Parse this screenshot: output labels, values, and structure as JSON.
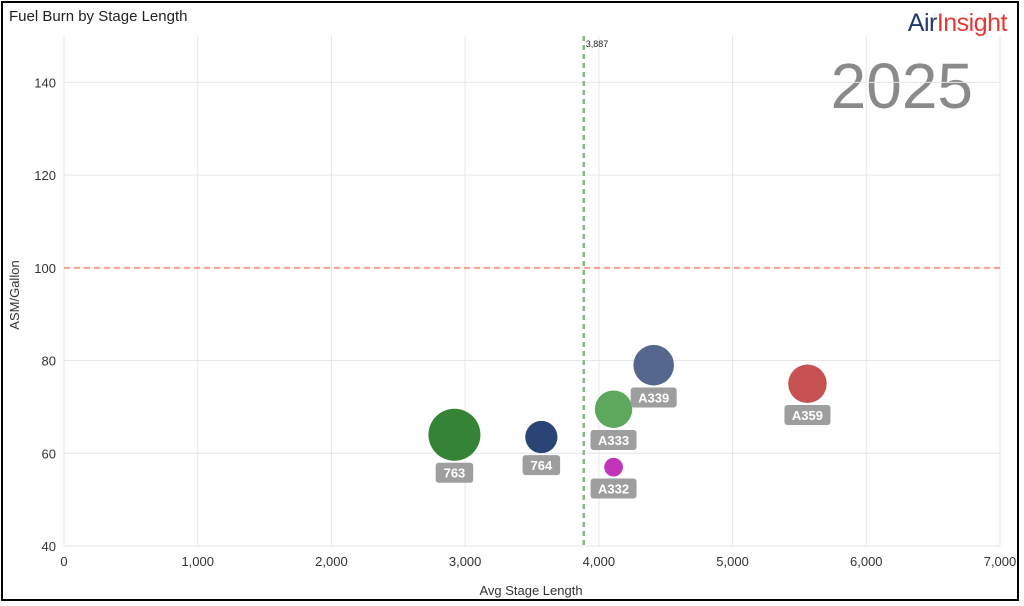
{
  "brand": {
    "part1": "Air",
    "part2": "Insight"
  },
  "year": "2025",
  "chart_data": {
    "type": "scatter",
    "title": "Fuel Burn by Stage Length",
    "xlabel": "Avg Stage Length",
    "ylabel": "ASM/Gallon",
    "xlim": [
      0,
      7000
    ],
    "ylim": [
      40,
      150
    ],
    "xticks": [
      0,
      1000,
      2000,
      3000,
      4000,
      5000,
      6000,
      7000
    ],
    "xtick_labels": [
      "0",
      "1,000",
      "2,000",
      "3,000",
      "4,000",
      "5,000",
      "6,000",
      "7,000"
    ],
    "yticks": [
      40,
      60,
      80,
      100,
      120,
      140
    ],
    "ytick_labels": [
      "40",
      "60",
      "80",
      "100",
      "120",
      "140"
    ],
    "grid": true,
    "ref_lines": [
      {
        "axis": "x",
        "value": 3887,
        "label": "3,887",
        "color": "#86b886"
      },
      {
        "axis": "y",
        "value": 100,
        "label": "",
        "color": "#f4a08c"
      }
    ],
    "points": [
      {
        "label": "763",
        "x": 2920,
        "y": 64,
        "size": 1.0,
        "color": "#2a7d2a"
      },
      {
        "label": "764",
        "x": 3570,
        "y": 63.5,
        "size": 0.62,
        "color": "#1f3a6e"
      },
      {
        "label": "A333",
        "x": 4110,
        "y": 69.5,
        "size": 0.72,
        "color": "#55a355"
      },
      {
        "label": "A332",
        "x": 4110,
        "y": 57,
        "size": 0.36,
        "color": "#c02ab4"
      },
      {
        "label": "A339",
        "x": 4410,
        "y": 79,
        "size": 0.78,
        "color": "#4d5f88"
      },
      {
        "label": "A359",
        "x": 5560,
        "y": 75,
        "size": 0.74,
        "color": "#c44949"
      }
    ]
  }
}
